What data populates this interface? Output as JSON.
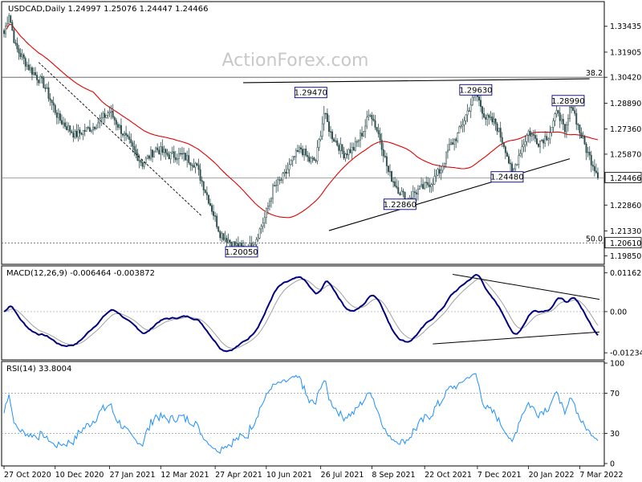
{
  "chart_data": {
    "type": "candlestick",
    "price_header": "USDCAD,Daily  1.24997 1.25076 1.24447 1.24466",
    "watermark": "ActionForex.com",
    "colors": {
      "up": "#ffffff",
      "down": "#2f4f4f",
      "candle_border": "#2f4f4f",
      "ma": "#e00000",
      "macd": "#000080",
      "signal": "#a0a0a0",
      "rsi": "#1e90ff",
      "line": "#000000"
    },
    "ylim": [
      1.195,
      1.348
    ],
    "y_ticks": [
      "1.33435",
      "1.31905",
      "1.30420",
      "1.28890",
      "1.27360",
      "1.25870",
      "1.24466",
      "1.22860",
      "1.21330",
      "1.20610",
      "1.19850"
    ],
    "y_tick_values": [
      1.33435,
      1.31905,
      1.3042,
      1.2889,
      1.2736,
      1.2587,
      1.24466,
      1.2286,
      1.2133,
      1.2061,
      1.1985
    ],
    "x_ticks": [
      {
        "label": "27 Oct 2020",
        "bar": 0
      },
      {
        "label": "10 Dec 2020",
        "bar": 31
      },
      {
        "label": "27 Jan 2021",
        "bar": 64
      },
      {
        "label": "12 Mar 2021",
        "bar": 95
      },
      {
        "label": "27 Apr 2021",
        "bar": 128
      },
      {
        "label": "10 Jun 2021",
        "bar": 159
      },
      {
        "label": "26 Jul 2021",
        "bar": 192
      },
      {
        "label": "8 Sep 2021",
        "bar": 223
      },
      {
        "label": "22 Oct 2021",
        "bar": 255
      },
      {
        "label": "7 Dec 2021",
        "bar": 287
      },
      {
        "label": "20 Jan 2022",
        "bar": 318
      },
      {
        "label": "7 Mar 2022",
        "bar": 349
      }
    ],
    "bar_count": 361,
    "anchors": [
      [
        0,
        1.33
      ],
      [
        3,
        1.342
      ],
      [
        7,
        1.322
      ],
      [
        15,
        1.31
      ],
      [
        24,
        1.3
      ],
      [
        33,
        1.28
      ],
      [
        43,
        1.27
      ],
      [
        54,
        1.275
      ],
      [
        64,
        1.284
      ],
      [
        74,
        1.268
      ],
      [
        84,
        1.253
      ],
      [
        92,
        1.262
      ],
      [
        100,
        1.258
      ],
      [
        108,
        1.258
      ],
      [
        116,
        1.253
      ],
      [
        124,
        1.232
      ],
      [
        131,
        1.212
      ],
      [
        139,
        1.2055
      ],
      [
        147,
        1.202
      ],
      [
        152,
        1.207
      ],
      [
        158,
        1.221
      ],
      [
        163,
        1.238
      ],
      [
        170,
        1.246
      ],
      [
        176,
        1.257
      ],
      [
        180,
        1.262
      ],
      [
        185,
        1.255
      ],
      [
        189,
        1.255
      ],
      [
        194,
        1.283
      ],
      [
        198,
        1.271
      ],
      [
        206,
        1.259
      ],
      [
        212,
        1.262
      ],
      [
        218,
        1.273
      ],
      [
        222,
        1.284
      ],
      [
        228,
        1.268
      ],
      [
        233,
        1.248
      ],
      [
        239,
        1.238
      ],
      [
        244,
        1.232
      ],
      [
        249,
        1.236
      ],
      [
        254,
        1.239
      ],
      [
        260,
        1.243
      ],
      [
        265,
        1.25
      ],
      [
        270,
        1.263
      ],
      [
        275,
        1.27
      ],
      [
        281,
        1.284
      ],
      [
        286,
        1.295
      ],
      [
        292,
        1.28
      ],
      [
        298,
        1.277
      ],
      [
        304,
        1.262
      ],
      [
        308,
        1.2465
      ],
      [
        313,
        1.261
      ],
      [
        318,
        1.272
      ],
      [
        324,
        1.266
      ],
      [
        330,
        1.27
      ],
      [
        336,
        1.285
      ],
      [
        340,
        1.27
      ],
      [
        344,
        1.289
      ],
      [
        349,
        1.272
      ],
      [
        354,
        1.259
      ],
      [
        361,
        1.2447
      ]
    ],
    "ma_period": 55,
    "current_price": {
      "label": "1.24466",
      "value": 1.24466
    },
    "support_price": {
      "label": "1.20610",
      "value": 1.2061
    },
    "fibonacci": [
      {
        "label": "38.2",
        "value": 1.3042
      },
      {
        "label": "50.0",
        "value": 1.2061
      }
    ],
    "price_labels": [
      {
        "label": "1.29470",
        "bar": 186,
        "value": 1.2947
      },
      {
        "label": "1.29630",
        "bar": 286,
        "value": 1.2963
      },
      {
        "label": "1.28990",
        "bar": 342,
        "value": 1.2899
      },
      {
        "label": "1.24480",
        "bar": 305,
        "value": 1.2448
      },
      {
        "label": "1.22860",
        "bar": 240,
        "value": 1.2286
      },
      {
        "label": "1.20050",
        "bar": 144,
        "value": 1.2005
      }
    ],
    "trendlines": [
      {
        "from": [
          145,
          1.301
        ],
        "to": [
          355,
          1.3033
        ]
      },
      {
        "from": [
          197,
          1.2135
        ],
        "to": [
          343,
          1.256
        ]
      },
      {
        "from": [
          21,
          1.313
        ],
        "to": [
          120,
          1.222
        ],
        "dashed": true
      }
    ],
    "macd": {
      "title": "MACD(12,26,9) -0.006464 -0.003872",
      "ylim": [
        -0.014,
        0.013
      ],
      "y_ticks": [
        "0.011629",
        "0.00",
        "-0.012348"
      ],
      "y_tick_values": [
        0.011629,
        0.0,
        -0.012348
      ],
      "trendlines": [
        {
          "from": [
            260,
            -0.0097
          ],
          "to": [
            361,
            -0.0061
          ]
        },
        {
          "from": [
            272,
            0.0112
          ],
          "to": [
            361,
            0.0037
          ]
        }
      ]
    },
    "rsi": {
      "title": "RSI(14) 33.8004",
      "ylim": [
        0,
        100
      ],
      "y_ticks": [
        "100",
        "70",
        "30",
        "0"
      ],
      "y_tick_values": [
        100,
        70,
        30,
        0
      ],
      "levels": [
        70,
        30
      ]
    }
  }
}
